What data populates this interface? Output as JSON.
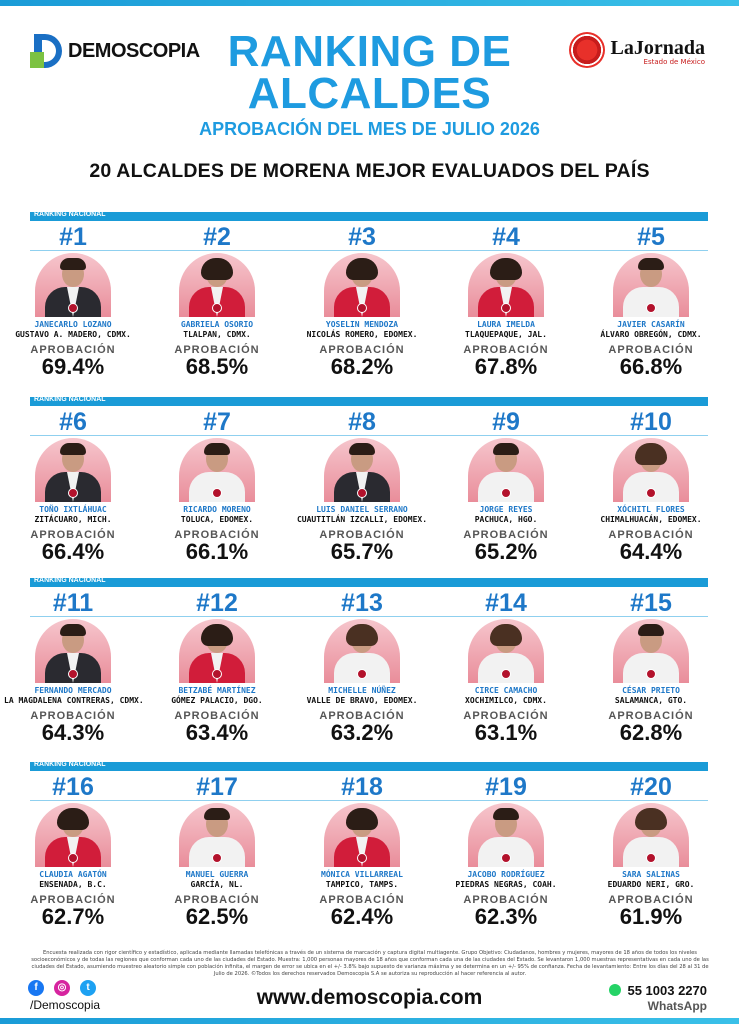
{
  "brand_left": "DEMOSCOPIA",
  "brand_right": "LaJornada",
  "brand_right_sub": "Estado de México",
  "title_line1": "RANKING DE",
  "title_line2": "ALCALDES",
  "subtitle": "APROBACIÓN DEL MES DE JULIO 2026",
  "subtitle2": "20 ALCALDES DE MORENA MEJOR EVALUADOS DEL PAÍS",
  "row_label": "RANKING NACIONAL",
  "approval_label": "APROBACIÓN",
  "mayors": [
    {
      "rank": "#1",
      "name": "JANECARLO LOZANO",
      "place": "GUSTAVO A. MADERO, CDMX.",
      "approval": "69.4%"
    },
    {
      "rank": "#2",
      "name": "GABRIELA OSORIO",
      "place": "TLALPAN, CDMX.",
      "approval": "68.5%"
    },
    {
      "rank": "#3",
      "name": "YOSELIN MENDOZA",
      "place": "NICOLÁS ROMERO, EDOMEX.",
      "approval": "68.2%"
    },
    {
      "rank": "#4",
      "name": "LAURA IMELDA",
      "place": "TLAQUEPAQUE, JAL.",
      "approval": "67.8%"
    },
    {
      "rank": "#5",
      "name": "JAVIER CASARÍN",
      "place": "ÁLVARO OBREGÓN, CDMX.",
      "approval": "66.8%"
    },
    {
      "rank": "#6",
      "name": "TOÑO IXTLÁHUAC",
      "place": "ZITÁCUARO, MICH.",
      "approval": "66.4%"
    },
    {
      "rank": "#7",
      "name": "RICARDO MORENO",
      "place": "TOLUCA, EDOMEX.",
      "approval": "66.1%"
    },
    {
      "rank": "#8",
      "name": "LUIS DANIEL SERRANO",
      "place": "CUAUTITLÁN IZCALLI, EDOMEX.",
      "approval": "65.7%"
    },
    {
      "rank": "#9",
      "name": "JORGE REYES",
      "place": "PACHUCA, HGO.",
      "approval": "65.2%"
    },
    {
      "rank": "#10",
      "name": "XÓCHITL FLORES",
      "place": "CHIMALHUACÁN, EDOMEX.",
      "approval": "64.4%"
    },
    {
      "rank": "#11",
      "name": "FERNANDO MERCADO",
      "place": "LA MAGDALENA CONTRERAS, CDMX.",
      "approval": "64.3%"
    },
    {
      "rank": "#12",
      "name": "BETZABÉ MARTÍNEZ",
      "place": "GÓMEZ PALACIO, DGO.",
      "approval": "63.4%"
    },
    {
      "rank": "#13",
      "name": "MICHELLE NÚÑEZ",
      "place": "VALLE DE BRAVO, EDOMEX.",
      "approval": "63.2%"
    },
    {
      "rank": "#14",
      "name": "CIRCE CAMACHO",
      "place": "XOCHIMILCO, CDMX.",
      "approval": "63.1%"
    },
    {
      "rank": "#15",
      "name": "CÉSAR PRIETO",
      "place": "SALAMANCA, GTO.",
      "approval": "62.8%"
    },
    {
      "rank": "#16",
      "name": "CLAUDIA AGATÓN",
      "place": "ENSENADA, B.C.",
      "approval": "62.7%"
    },
    {
      "rank": "#17",
      "name": "MANUEL GUERRA",
      "place": "GARCÍA, NL.",
      "approval": "62.5%"
    },
    {
      "rank": "#18",
      "name": "MÓNICA VILLARREAL",
      "place": "TAMPICO, TAMPS.",
      "approval": "62.4%"
    },
    {
      "rank": "#19",
      "name": "JACOBO RODRÍGUEZ",
      "place": "PIEDRAS NEGRAS, COAH.",
      "approval": "62.3%"
    },
    {
      "rank": "#20",
      "name": "SARA SALINAS",
      "place": "EDUARDO NERI, GRO.",
      "approval": "61.9%"
    }
  ],
  "footnote": "Encuesta realizada con rigor científico y estadístico, aplicada mediante llamadas telefónicas a través de un sistema de marcación y captura digital multiagente. Grupo Objetivo: Ciudadanos, hombres y mujeres, mayores de 18 años de todos los niveles socioeconómicos y de todas las regiones que conforman cada uno de las ciudades del Estado. Muestra: 1,000 personas mayores de 18 años que conforman cada una de las ciudades del Estado. Se levantaron 1,000 muestras representativas en cada uno de las ciudades del Estado, asumiendo muestreo aleatorio simple con población infinita, el margen de error se ubica en el +/- 3.8% bajo supuesto de varianza máxima y se determina en un +/- 95% de confianza. Fecha de levantamiento: Entre los días del 28 al 31 de Julio de 2026. ©Todos los derechos reservados Demoscopia S.A se autoriza su reproducción al hacer referencia al autor.",
  "social_handle": "/Demoscopia",
  "website": "www.demoscopia.com",
  "phone": "55 1003 2270",
  "phone_label": "WhatsApp",
  "colors": {
    "accent": "#1e9be0",
    "rank": "#1e78c8",
    "bar": "#1a9bd7",
    "photo_bg": "#e98d9a"
  }
}
